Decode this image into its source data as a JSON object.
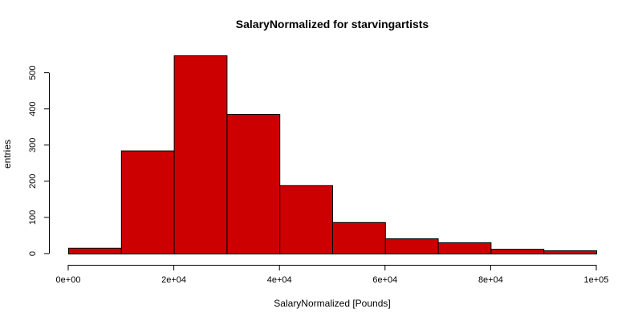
{
  "chart_data": {
    "type": "bar",
    "title": "SalaryNormalized for starvingartists",
    "xlabel": "SalaryNormalized [Pounds]",
    "ylabel": "entries",
    "bar_color": "#cc0000",
    "bar_edge_color": "#000000",
    "background": "#ffffff",
    "grid": false,
    "legend": "none",
    "xlim": [
      0,
      100000
    ],
    "ylim": [
      0,
      550
    ],
    "x_ticks": [
      {
        "value": 0,
        "label": "0e+00"
      },
      {
        "value": 20000,
        "label": "2e+04"
      },
      {
        "value": 40000,
        "label": "4e+04"
      },
      {
        "value": 60000,
        "label": "6e+04"
      },
      {
        "value": 80000,
        "label": "8e+04"
      },
      {
        "value": 100000,
        "label": "1e+05"
      }
    ],
    "y_ticks": [
      {
        "value": 0,
        "label": "0"
      },
      {
        "value": 100,
        "label": "100"
      },
      {
        "value": 200,
        "label": "200"
      },
      {
        "value": 300,
        "label": "300"
      },
      {
        "value": 400,
        "label": "400"
      },
      {
        "value": 500,
        "label": "500"
      }
    ],
    "bins": [
      {
        "start": 0,
        "end": 10000,
        "count": 16
      },
      {
        "start": 10000,
        "end": 20000,
        "count": 285
      },
      {
        "start": 20000,
        "end": 30000,
        "count": 548
      },
      {
        "start": 30000,
        "end": 40000,
        "count": 386
      },
      {
        "start": 40000,
        "end": 50000,
        "count": 189
      },
      {
        "start": 50000,
        "end": 60000,
        "count": 87
      },
      {
        "start": 60000,
        "end": 70000,
        "count": 42
      },
      {
        "start": 70000,
        "end": 80000,
        "count": 31
      },
      {
        "start": 80000,
        "end": 90000,
        "count": 13
      },
      {
        "start": 90000,
        "end": 100000,
        "count": 9
      }
    ]
  }
}
